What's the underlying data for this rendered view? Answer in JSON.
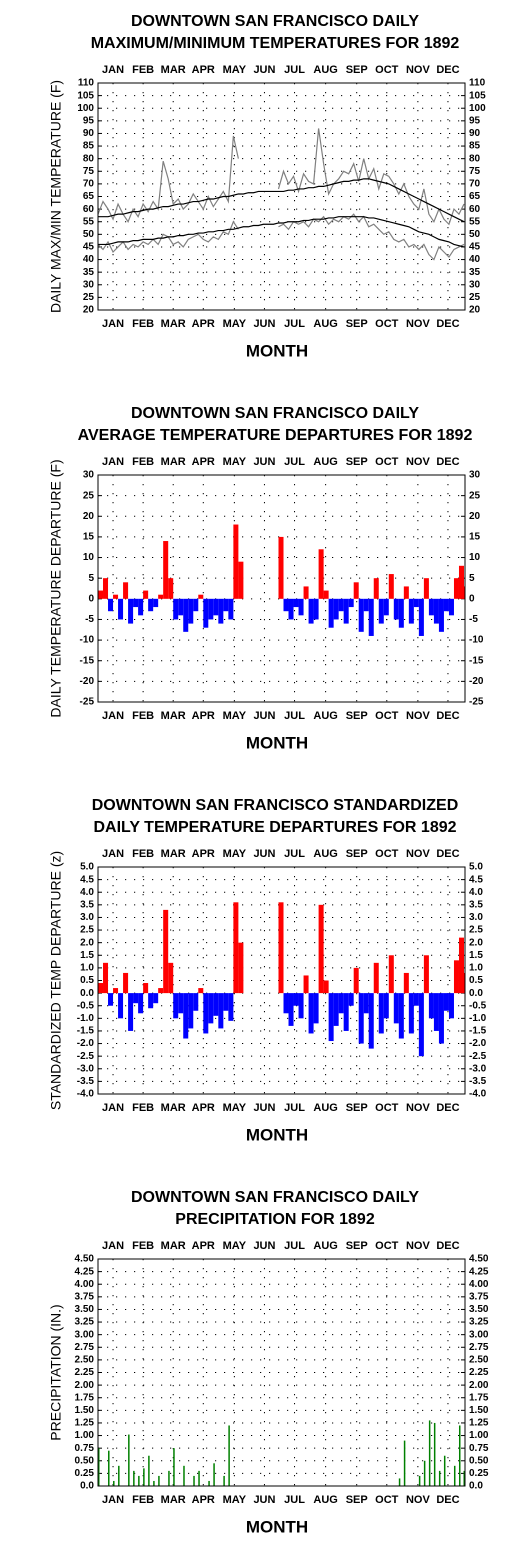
{
  "chart_data": [
    {
      "type": "line",
      "title": [
        "DOWNTOWN SAN FRANCISCO DAILY",
        "MAXIMUM/MINIMUM TEMPERATURES FOR 1892"
      ],
      "y_label": "DAILY MAX/MIN TEMPERATURE (F)",
      "x_label": "MONTH",
      "xlim": [
        1,
        367
      ],
      "xticks": [
        {
          "value": 16,
          "label": "JAN"
        },
        {
          "value": 46,
          "label": "FEB"
        },
        {
          "value": 76,
          "label": "MAR"
        },
        {
          "value": 106,
          "label": "APR"
        },
        {
          "value": 137,
          "label": "MAY"
        },
        {
          "value": 167,
          "label": "JUN"
        },
        {
          "value": 197,
          "label": "JUL"
        },
        {
          "value": 228,
          "label": "AUG"
        },
        {
          "value": 259,
          "label": "SEP"
        },
        {
          "value": 289,
          "label": "OCT"
        },
        {
          "value": 320,
          "label": "NOV"
        },
        {
          "value": 350,
          "label": "DEC"
        }
      ],
      "ylim": [
        20,
        110
      ],
      "yticks": [
        20,
        25,
        30,
        35,
        40,
        45,
        50,
        55,
        60,
        65,
        70,
        75,
        80,
        85,
        90,
        95,
        100,
        105,
        110
      ],
      "grid": true,
      "x": [
        1,
        6,
        11,
        16,
        21,
        26,
        31,
        36,
        41,
        46,
        51,
        56,
        61,
        66,
        71,
        76,
        81,
        86,
        91,
        96,
        101,
        106,
        111,
        116,
        121,
        126,
        131,
        136,
        141,
        146,
        151,
        156,
        161,
        166,
        171,
        176,
        181,
        186,
        191,
        196,
        201,
        206,
        211,
        216,
        221,
        226,
        231,
        236,
        241,
        246,
        251,
        256,
        261,
        266,
        271,
        276,
        281,
        286,
        291,
        296,
        301,
        306,
        311,
        316,
        321,
        326,
        331,
        336,
        341,
        346,
        351,
        356,
        361,
        366
      ],
      "series": [
        {
          "color": "#808080",
          "values": [
            58,
            63,
            60,
            56,
            62,
            58,
            55,
            60,
            57,
            62,
            59,
            63,
            60,
            79,
            72,
            62,
            64,
            60,
            62,
            66,
            63,
            60,
            65,
            61,
            64,
            67,
            63,
            89,
            80,
            null,
            null,
            null,
            null,
            null,
            null,
            null,
            68,
            75,
            70,
            73,
            67,
            74,
            71,
            70,
            92,
            78,
            66,
            70,
            72,
            75,
            74,
            78,
            71,
            80,
            72,
            76,
            68,
            74,
            73,
            70,
            66,
            70,
            65,
            62,
            60,
            68,
            58,
            55,
            60,
            56,
            54,
            60,
            58,
            62
          ]
        },
        {
          "color": "#808080",
          "values": [
            46,
            44,
            47,
            43,
            45,
            47,
            44,
            46,
            45,
            47,
            46,
            48,
            46,
            50,
            49,
            46,
            47,
            45,
            48,
            49,
            50,
            48,
            47,
            49,
            48,
            51,
            50,
            55,
            52,
            null,
            null,
            null,
            null,
            null,
            null,
            null,
            53,
            54,
            52,
            55,
            54,
            55,
            53,
            56,
            55,
            57,
            54,
            56,
            55,
            57,
            56,
            58,
            55,
            57,
            53,
            54,
            52,
            50,
            51,
            48,
            47,
            48,
            45,
            46,
            44,
            46,
            42,
            40,
            45,
            43,
            41,
            44,
            45,
            46
          ]
        },
        {
          "color": "#000000",
          "values": [
            57,
            57,
            57,
            57.5,
            58,
            58,
            58.5,
            59,
            59,
            59.5,
            60,
            60,
            60.5,
            61,
            61,
            61.5,
            62,
            62,
            62.5,
            63,
            63,
            63.5,
            64,
            64,
            64.5,
            65,
            65,
            65.5,
            66,
            66,
            66.5,
            66.5,
            67,
            67,
            67,
            67,
            67,
            67,
            67.5,
            67.5,
            68,
            68,
            68.5,
            68.5,
            69,
            69,
            69.5,
            70,
            70.5,
            71,
            71,
            71.5,
            71.5,
            72,
            72,
            71.5,
            71,
            70.5,
            70,
            69,
            68,
            67,
            66,
            65,
            64,
            63,
            62,
            61,
            60,
            59,
            58,
            57,
            56,
            55
          ]
        },
        {
          "color": "#000000",
          "values": [
            46,
            46,
            46,
            46.5,
            47,
            47,
            47,
            47.5,
            47.5,
            48,
            48,
            48,
            48.5,
            48.5,
            49,
            49,
            49.5,
            49.5,
            50,
            50,
            50.5,
            50.5,
            51,
            51,
            51.5,
            51.5,
            52,
            52,
            52.5,
            53,
            53,
            53.5,
            53.5,
            54,
            54,
            54,
            54.5,
            54.5,
            55,
            55,
            55,
            55.5,
            55.5,
            56,
            56,
            56,
            56.5,
            56.5,
            57,
            57,
            57,
            57,
            57,
            57,
            56.5,
            56.5,
            56,
            55.5,
            55,
            54.5,
            54,
            53.5,
            53,
            52,
            51,
            50.5,
            50,
            49,
            48,
            47.5,
            47,
            46,
            45.5,
            45
          ]
        }
      ]
    },
    {
      "type": "bar",
      "title": [
        "DOWNTOWN SAN FRANCISCO DAILY",
        "AVERAGE TEMPERATURE DEPARTURES FOR 1892"
      ],
      "y_label": "DAILY TEMPERATURE DEPARTURE (F)",
      "x_label": "MONTH",
      "xlim": [
        1,
        367
      ],
      "xticks": [
        {
          "value": 16,
          "label": "JAN"
        },
        {
          "value": 46,
          "label": "FEB"
        },
        {
          "value": 76,
          "label": "MAR"
        },
        {
          "value": 106,
          "label": "APR"
        },
        {
          "value": 137,
          "label": "MAY"
        },
        {
          "value": 167,
          "label": "JUN"
        },
        {
          "value": 197,
          "label": "JUL"
        },
        {
          "value": 228,
          "label": "AUG"
        },
        {
          "value": 259,
          "label": "SEP"
        },
        {
          "value": 289,
          "label": "OCT"
        },
        {
          "value": 320,
          "label": "NOV"
        },
        {
          "value": 350,
          "label": "DEC"
        }
      ],
      "ylim": [
        -25,
        30
      ],
      "yticks": [
        -25,
        -20,
        -15,
        -10,
        -5,
        0,
        5,
        10,
        15,
        20,
        25,
        30
      ],
      "grid": true,
      "bar_width": 5,
      "positive_color": "#ff0000",
      "negative_color": "#0000ff",
      "x": [
        1,
        6,
        11,
        16,
        21,
        26,
        31,
        36,
        41,
        46,
        51,
        56,
        61,
        66,
        71,
        76,
        81,
        86,
        91,
        96,
        101,
        106,
        111,
        116,
        121,
        126,
        131,
        136,
        141,
        146,
        151,
        156,
        161,
        166,
        171,
        176,
        181,
        186,
        191,
        196,
        201,
        206,
        211,
        216,
        221,
        226,
        231,
        236,
        241,
        246,
        251,
        256,
        261,
        266,
        271,
        276,
        281,
        286,
        291,
        296,
        301,
        306,
        311,
        316,
        321,
        326,
        331,
        336,
        341,
        346,
        351,
        356,
        361,
        366
      ],
      "values": [
        2,
        5,
        -3,
        1,
        -5,
        4,
        -6,
        -2,
        -4,
        2,
        -3,
        -2,
        1,
        14,
        5,
        -5,
        -4,
        -8,
        -6,
        -3,
        1,
        -7,
        -5,
        -4,
        -6,
        -3,
        -5,
        18,
        9,
        null,
        null,
        null,
        null,
        null,
        null,
        null,
        15,
        -3,
        -5,
        -2,
        -4,
        3,
        -6,
        -5,
        12,
        2,
        -7,
        -5,
        -3,
        -6,
        -2,
        4,
        -8,
        -3,
        -9,
        5,
        -6,
        -4,
        6,
        -5,
        -7,
        3,
        -6,
        -2,
        -9,
        5,
        -4,
        -6,
        -8,
        -3,
        -4,
        5,
        8,
        3
      ]
    },
    {
      "type": "bar",
      "title": [
        "DOWNTOWN SAN FRANCISCO STANDARDIZED",
        "DAILY TEMPERATURE DEPARTURES FOR 1892"
      ],
      "y_label": "STANDARDIZED TEMP DEPARTURE (z)",
      "x_label": "MONTH",
      "xlim": [
        1,
        367
      ],
      "xticks": [
        {
          "value": 16,
          "label": "JAN"
        },
        {
          "value": 46,
          "label": "FEB"
        },
        {
          "value": 76,
          "label": "MAR"
        },
        {
          "value": 106,
          "label": "APR"
        },
        {
          "value": 137,
          "label": "MAY"
        },
        {
          "value": 167,
          "label": "JUN"
        },
        {
          "value": 197,
          "label": "JUL"
        },
        {
          "value": 228,
          "label": "AUG"
        },
        {
          "value": 259,
          "label": "SEP"
        },
        {
          "value": 289,
          "label": "OCT"
        },
        {
          "value": 320,
          "label": "NOV"
        },
        {
          "value": 350,
          "label": "DEC"
        }
      ],
      "ylim": [
        -4,
        5
      ],
      "yticks": [
        {
          "value": -4,
          "label": "-4.0"
        },
        -3.5,
        {
          "value": -3,
          "label": "-3.0"
        },
        -2.5,
        {
          "value": -2,
          "label": "-2.0"
        },
        -1.5,
        {
          "value": -1,
          "label": "-1.0"
        },
        -0.5,
        {
          "value": 0,
          "label": "0.0"
        },
        0.5,
        {
          "value": 1,
          "label": "1.0"
        },
        1.5,
        {
          "value": 2,
          "label": "2.0"
        },
        2.5,
        {
          "value": 3,
          "label": "3.0"
        },
        3.5,
        {
          "value": 4,
          "label": "4.0"
        },
        4.5,
        {
          "value": 5,
          "label": "5.0"
        }
      ],
      "grid": true,
      "bar_width": 5,
      "positive_color": "#ff0000",
      "negative_color": "#0000ff",
      "x": [
        1,
        6,
        11,
        16,
        21,
        26,
        31,
        36,
        41,
        46,
        51,
        56,
        61,
        66,
        71,
        76,
        81,
        86,
        91,
        96,
        101,
        106,
        111,
        116,
        121,
        126,
        131,
        136,
        141,
        146,
        151,
        156,
        161,
        166,
        171,
        176,
        181,
        186,
        191,
        196,
        201,
        206,
        211,
        216,
        221,
        226,
        231,
        236,
        241,
        246,
        251,
        256,
        261,
        266,
        271,
        276,
        281,
        286,
        291,
        296,
        301,
        306,
        311,
        316,
        321,
        326,
        331,
        336,
        341,
        346,
        351,
        356,
        361,
        366
      ],
      "values": [
        0.4,
        1.2,
        -0.5,
        0.2,
        -1.0,
        0.8,
        -1.5,
        -0.4,
        -0.8,
        0.4,
        -0.6,
        -0.4,
        0.2,
        3.3,
        1.2,
        -1.0,
        -0.8,
        -1.8,
        -1.4,
        -0.7,
        0.2,
        -1.6,
        -1.2,
        -0.9,
        -1.4,
        -0.7,
        -1.1,
        3.6,
        2.0,
        null,
        null,
        null,
        null,
        null,
        null,
        null,
        3.6,
        -0.8,
        -1.3,
        -0.5,
        -1.0,
        0.7,
        -1.6,
        -1.2,
        3.5,
        0.5,
        -1.9,
        -1.3,
        -0.8,
        -1.5,
        -0.5,
        1.0,
        -2.0,
        -0.8,
        -2.2,
        1.2,
        -1.6,
        -1.0,
        1.5,
        -1.2,
        -1.8,
        0.8,
        -1.6,
        -0.5,
        -2.5,
        1.5,
        -1.0,
        -1.5,
        -2.0,
        -0.7,
        -1.0,
        1.3,
        2.2,
        0.8
      ]
    },
    {
      "type": "bar",
      "title": [
        "DOWNTOWN SAN FRANCISCO DAILY",
        "PRECIPITATION FOR 1892"
      ],
      "y_label": "PRECIPITATION (IN.)",
      "x_label": "MONTH",
      "xlim": [
        1,
        367
      ],
      "xticks": [
        {
          "value": 16,
          "label": "JAN"
        },
        {
          "value": 46,
          "label": "FEB"
        },
        {
          "value": 76,
          "label": "MAR"
        },
        {
          "value": 106,
          "label": "APR"
        },
        {
          "value": 137,
          "label": "MAY"
        },
        {
          "value": 167,
          "label": "JUN"
        },
        {
          "value": 197,
          "label": "JUL"
        },
        {
          "value": 228,
          "label": "AUG"
        },
        {
          "value": 259,
          "label": "SEP"
        },
        {
          "value": 289,
          "label": "OCT"
        },
        {
          "value": 320,
          "label": "NOV"
        },
        {
          "value": 350,
          "label": "DEC"
        }
      ],
      "ylim": [
        0,
        4.5
      ],
      "yticks": [
        {
          "value": 0,
          "label": "0.0"
        },
        0.25,
        {
          "value": 0.5,
          "label": "0.50"
        },
        0.75,
        {
          "value": 1,
          "label": "1.00"
        },
        1.25,
        {
          "value": 1.5,
          "label": "1.50"
        },
        1.75,
        {
          "value": 2,
          "label": "2.00"
        },
        2.25,
        {
          "value": 2.5,
          "label": "2.50"
        },
        2.75,
        {
          "value": 3,
          "label": "3.00"
        },
        3.25,
        {
          "value": 3.5,
          "label": "3.50"
        },
        3.75,
        {
          "value": 4,
          "label": "4.00"
        },
        4.25,
        {
          "value": 4.5,
          "label": "4.50"
        }
      ],
      "grid": true,
      "bar_width": 1.5,
      "color": "#008000",
      "x": [
        1,
        6,
        11,
        16,
        21,
        26,
        31,
        36,
        41,
        46,
        51,
        56,
        61,
        66,
        71,
        76,
        81,
        86,
        91,
        96,
        101,
        106,
        111,
        116,
        121,
        126,
        131,
        136,
        141,
        146,
        151,
        156,
        161,
        166,
        171,
        176,
        181,
        186,
        191,
        196,
        201,
        206,
        211,
        216,
        221,
        226,
        231,
        236,
        241,
        246,
        251,
        256,
        261,
        266,
        271,
        276,
        281,
        286,
        291,
        296,
        301,
        306,
        311,
        316,
        321,
        326,
        331,
        336,
        341,
        346,
        351,
        356,
        361,
        366
      ],
      "values": [
        0.75,
        0,
        0.7,
        0.1,
        0.4,
        0,
        1.02,
        0.3,
        0.2,
        0.35,
        0.6,
        0.1,
        0.2,
        0,
        0.3,
        0.75,
        0,
        0.4,
        0,
        0.2,
        0.3,
        0,
        0.1,
        0.45,
        0,
        0.2,
        1.2,
        0,
        0,
        0,
        0,
        0,
        0,
        0,
        0,
        0,
        0,
        0,
        0,
        0,
        0,
        0,
        0,
        0,
        0,
        0,
        0,
        0,
        0,
        0,
        0,
        0,
        0,
        0,
        0,
        0,
        0,
        0,
        0,
        0,
        0.15,
        0.9,
        0,
        0,
        0.2,
        0.5,
        1.3,
        1.25,
        0.3,
        0.6,
        0,
        0.4,
        1.2,
        0.3
      ]
    }
  ]
}
